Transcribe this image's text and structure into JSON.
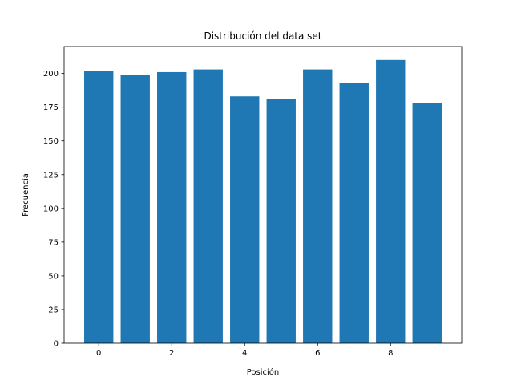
{
  "chart_data": {
    "type": "bar",
    "title": "Distribución del data set",
    "xlabel": "Posición",
    "ylabel": "Frecuencia",
    "x": [
      0,
      1,
      2,
      3,
      4,
      5,
      6,
      7,
      8,
      9
    ],
    "values": [
      202,
      199,
      201,
      203,
      183,
      181,
      203,
      193,
      210,
      178
    ],
    "xlim": [
      -0.95,
      9.95
    ],
    "ylim": [
      0,
      220
    ],
    "xticks": [
      0,
      2,
      4,
      6,
      8
    ],
    "yticks": [
      0,
      25,
      50,
      75,
      100,
      125,
      150,
      175,
      200
    ],
    "bar_color": "#1f77b4",
    "grid": false
  }
}
